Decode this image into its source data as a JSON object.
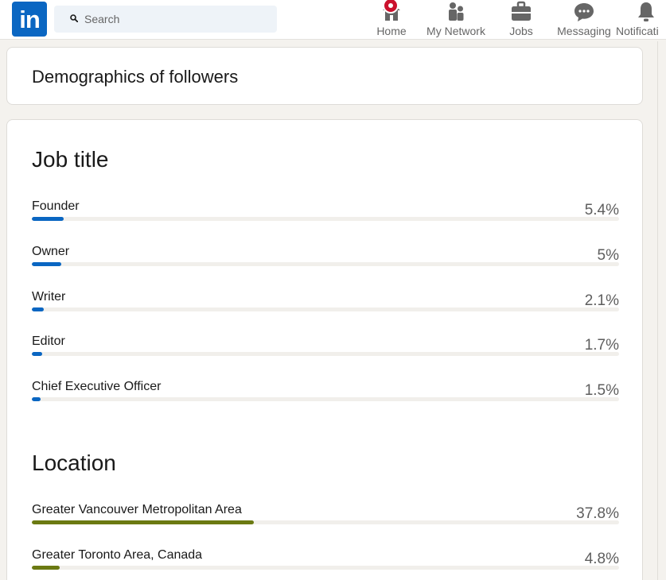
{
  "topbar": {
    "logo": "in",
    "search_placeholder": "Search",
    "nav": [
      {
        "label": "Home",
        "icon": "home-icon"
      },
      {
        "label": "My Network",
        "icon": "network-icon"
      },
      {
        "label": "Jobs",
        "icon": "briefcase-icon"
      },
      {
        "label": "Messaging",
        "icon": "messaging-icon"
      },
      {
        "label": "Notificati",
        "icon": "bell-icon"
      }
    ]
  },
  "demographics": {
    "title": "Demographics of followers"
  },
  "job_title": {
    "heading": "Job title",
    "accent": "#0a66c2",
    "items": [
      {
        "label": "Founder",
        "percent_text": "5.4%",
        "value": 5.4
      },
      {
        "label": "Owner",
        "percent_text": "5%",
        "value": 5
      },
      {
        "label": "Writer",
        "percent_text": "2.1%",
        "value": 2.1
      },
      {
        "label": "Editor",
        "percent_text": "1.7%",
        "value": 1.7
      },
      {
        "label": "Chief Executive Officer",
        "percent_text": "1.5%",
        "value": 1.5
      }
    ]
  },
  "location": {
    "heading": "Location",
    "accent": "#6b7a12",
    "items": [
      {
        "label": "Greater Vancouver Metropolitan Area",
        "percent_text": "37.8%",
        "value": 37.8
      },
      {
        "label": "Greater Toronto Area, Canada",
        "percent_text": "4.8%",
        "value": 4.8
      }
    ]
  }
}
